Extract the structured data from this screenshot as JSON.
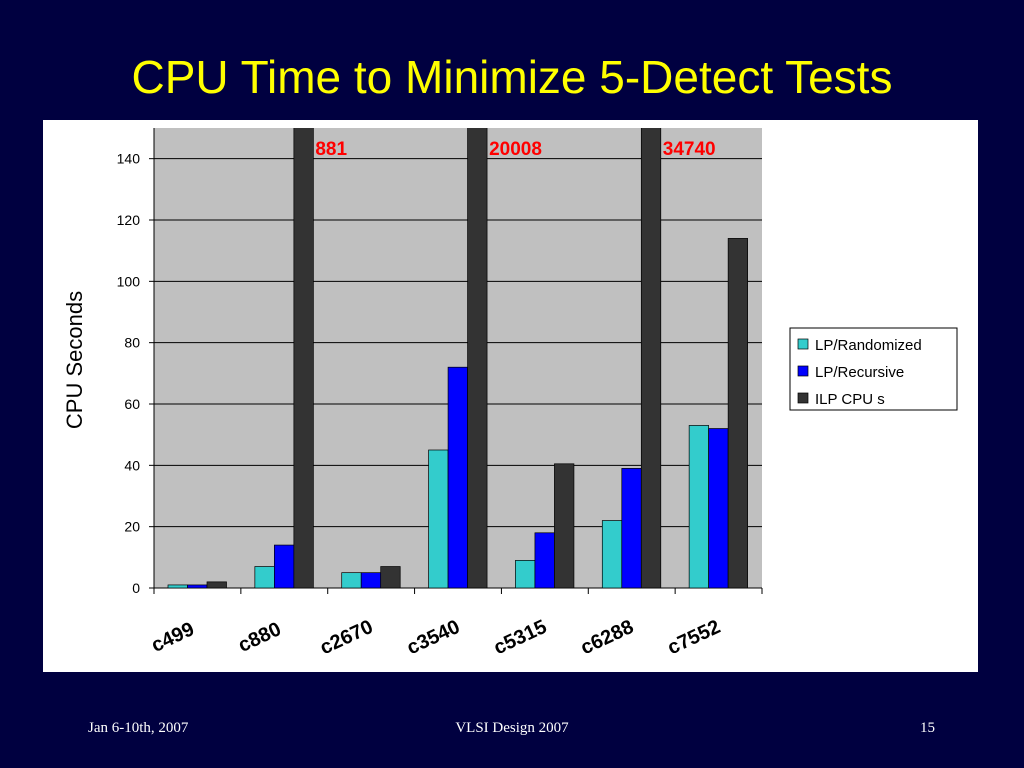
{
  "slide": {
    "title": "CPU Time to Minimize 5-Detect Tests",
    "footer_left": "Jan 6-10th, 2007",
    "footer_center": "VLSI Design 2007",
    "footer_right": "15"
  },
  "chart_data": {
    "type": "bar",
    "y_label": "CPU Seconds",
    "categories": [
      "c499",
      "c880",
      "c2670",
      "c3540",
      "c5315",
      "c6288",
      "c7552"
    ],
    "series": [
      {
        "name": "LP/Randomized",
        "color": "#33cccc",
        "values": [
          1,
          7,
          5,
          45,
          9,
          22,
          53
        ]
      },
      {
        "name": "LP/Recursive",
        "color": "#0000ff",
        "values": [
          1,
          14,
          5,
          72,
          18,
          39,
          52
        ]
      },
      {
        "name": "ILP CPU s",
        "color": "#333333",
        "values": [
          2,
          881,
          7,
          20008,
          40.5,
          34740,
          114
        ],
        "value_labels": [
          null,
          "881",
          null,
          "20008",
          null,
          "34740",
          null
        ]
      }
    ],
    "ylim": [
      0,
      150
    ],
    "yticks": [
      0,
      20,
      40,
      60,
      80,
      100,
      120,
      140
    ],
    "grid": true,
    "legend": "right"
  }
}
